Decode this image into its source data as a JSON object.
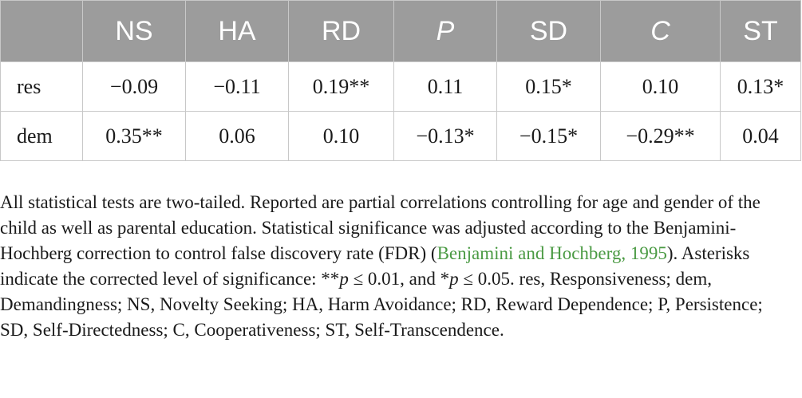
{
  "table": {
    "corner": "",
    "headers": [
      "NS",
      "HA",
      "RD",
      "P",
      "SD",
      "C",
      "ST"
    ],
    "rows": [
      {
        "label": "res",
        "values": [
          "−0.09",
          "−0.11",
          "0.19**",
          "0.11",
          "0.15*",
          "0.10",
          "0.13*"
        ]
      },
      {
        "label": "dem",
        "values": [
          "0.35**",
          "0.06",
          "0.10",
          "−0.13*",
          "−0.15*",
          "−0.29**",
          "0.04"
        ]
      }
    ]
  },
  "note": {
    "part1": "All statistical tests are two-tailed. Reported are partial correlations controlling for age and gender of the child as well as parental education. Statistical significance was adjusted according to the Benjamini-Hochberg correction to control false discovery rate (FDR) (",
    "citation": "Benjamini and Hochberg, 1995",
    "part2": "). Asterisks indicate the corrected level of significance: **",
    "p1": "p",
    "part3": " ≤ 0.01, and *",
    "p2": "p",
    "part4": " ≤ 0.05. res, Responsiveness; dem, Demandingness; NS, Novelty Seeking; HA, Harm Avoidance; RD, Reward Dependence; P, Persistence; SD, Self-Directedness; C, Cooperativeness; ST, Self-Transcendence."
  }
}
